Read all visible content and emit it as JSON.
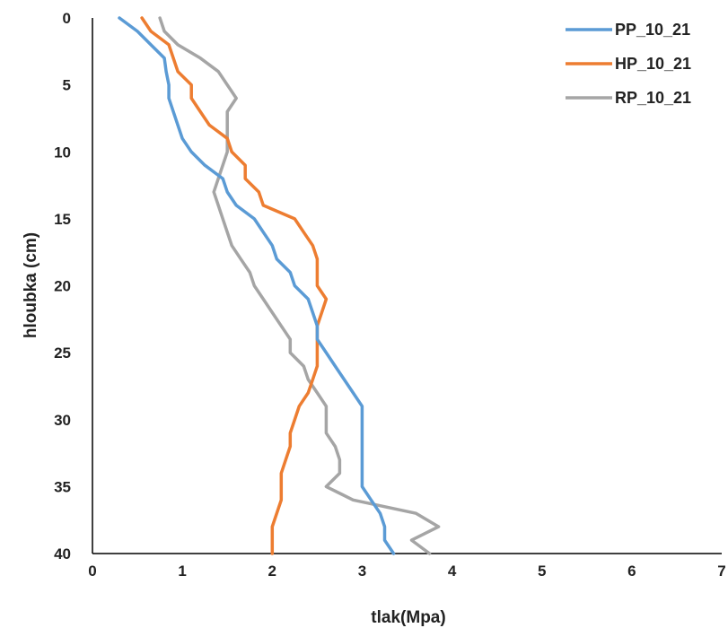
{
  "chart_data": {
    "type": "line",
    "title": "",
    "xlabel": "tlak(Mpa)",
    "ylabel": "hloubka (cm)",
    "xlim": [
      0,
      7
    ],
    "ylim": [
      0,
      40
    ],
    "y_inverted": true,
    "x_ticks": [
      "0",
      "1",
      "2",
      "3",
      "4",
      "5",
      "6",
      "7"
    ],
    "y_ticks": [
      "0",
      "5",
      "10",
      "15",
      "20",
      "25",
      "30",
      "35",
      "40"
    ],
    "grid": false,
    "legend_position": "top-right",
    "colors": {
      "PP_10_21": "#5b9bd5",
      "HP_10_21": "#ed7d31",
      "RP_10_21": "#a5a5a5"
    },
    "series": [
      {
        "name": "PP_10_21",
        "color": "#5b9bd5",
        "points": [
          [
            0.3,
            0
          ],
          [
            0.5,
            1
          ],
          [
            0.65,
            2
          ],
          [
            0.8,
            3
          ],
          [
            0.82,
            4
          ],
          [
            0.85,
            5
          ],
          [
            0.85,
            6
          ],
          [
            0.9,
            7
          ],
          [
            0.95,
            8
          ],
          [
            1.0,
            9
          ],
          [
            1.1,
            10
          ],
          [
            1.25,
            11
          ],
          [
            1.45,
            12
          ],
          [
            1.5,
            13
          ],
          [
            1.6,
            14
          ],
          [
            1.8,
            15
          ],
          [
            1.9,
            16
          ],
          [
            2.0,
            17
          ],
          [
            2.05,
            18
          ],
          [
            2.2,
            19
          ],
          [
            2.25,
            20
          ],
          [
            2.4,
            21
          ],
          [
            2.45,
            22
          ],
          [
            2.5,
            23
          ],
          [
            2.5,
            24
          ],
          [
            2.6,
            25
          ],
          [
            2.7,
            26
          ],
          [
            2.8,
            27
          ],
          [
            2.9,
            28
          ],
          [
            3.0,
            29
          ],
          [
            3.0,
            30
          ],
          [
            3.0,
            31
          ],
          [
            3.0,
            32
          ],
          [
            3.0,
            33
          ],
          [
            3.0,
            34
          ],
          [
            3.0,
            35
          ],
          [
            3.1,
            36
          ],
          [
            3.2,
            37
          ],
          [
            3.25,
            38
          ],
          [
            3.25,
            39
          ],
          [
            3.35,
            40
          ]
        ]
      },
      {
        "name": "HP_10_21",
        "color": "#ed7d31",
        "points": [
          [
            0.55,
            0
          ],
          [
            0.65,
            1
          ],
          [
            0.85,
            2
          ],
          [
            0.9,
            3
          ],
          [
            0.95,
            4
          ],
          [
            1.1,
            5
          ],
          [
            1.1,
            6
          ],
          [
            1.2,
            7
          ],
          [
            1.3,
            8
          ],
          [
            1.5,
            9
          ],
          [
            1.55,
            10
          ],
          [
            1.7,
            11
          ],
          [
            1.7,
            12
          ],
          [
            1.85,
            13
          ],
          [
            1.9,
            14
          ],
          [
            2.25,
            15
          ],
          [
            2.35,
            16
          ],
          [
            2.45,
            17
          ],
          [
            2.5,
            18
          ],
          [
            2.5,
            19
          ],
          [
            2.5,
            20
          ],
          [
            2.6,
            21
          ],
          [
            2.55,
            22
          ],
          [
            2.5,
            23
          ],
          [
            2.5,
            24
          ],
          [
            2.5,
            25
          ],
          [
            2.5,
            26
          ],
          [
            2.45,
            27
          ],
          [
            2.4,
            28
          ],
          [
            2.3,
            29
          ],
          [
            2.25,
            30
          ],
          [
            2.2,
            31
          ],
          [
            2.2,
            32
          ],
          [
            2.15,
            33
          ],
          [
            2.1,
            34
          ],
          [
            2.1,
            35
          ],
          [
            2.1,
            36
          ],
          [
            2.05,
            37
          ],
          [
            2.0,
            38
          ],
          [
            2.0,
            39
          ],
          [
            2.0,
            40
          ]
        ]
      },
      {
        "name": "RP_10_21",
        "color": "#a5a5a5",
        "points": [
          [
            0.75,
            0
          ],
          [
            0.8,
            1
          ],
          [
            0.95,
            2
          ],
          [
            1.2,
            3
          ],
          [
            1.4,
            4
          ],
          [
            1.5,
            5
          ],
          [
            1.6,
            6
          ],
          [
            1.5,
            7
          ],
          [
            1.5,
            8
          ],
          [
            1.5,
            9
          ],
          [
            1.5,
            10
          ],
          [
            1.45,
            11
          ],
          [
            1.4,
            12
          ],
          [
            1.35,
            13
          ],
          [
            1.4,
            14
          ],
          [
            1.45,
            15
          ],
          [
            1.5,
            16
          ],
          [
            1.55,
            17
          ],
          [
            1.65,
            18
          ],
          [
            1.75,
            19
          ],
          [
            1.8,
            20
          ],
          [
            1.9,
            21
          ],
          [
            2.0,
            22
          ],
          [
            2.1,
            23
          ],
          [
            2.2,
            24
          ],
          [
            2.2,
            25
          ],
          [
            2.35,
            26
          ],
          [
            2.4,
            27
          ],
          [
            2.5,
            28
          ],
          [
            2.6,
            29
          ],
          [
            2.6,
            30
          ],
          [
            2.6,
            31
          ],
          [
            2.7,
            32
          ],
          [
            2.75,
            33
          ],
          [
            2.75,
            34
          ],
          [
            2.6,
            35
          ],
          [
            2.9,
            36
          ],
          [
            3.6,
            37
          ],
          [
            3.85,
            38
          ],
          [
            3.55,
            39
          ],
          [
            3.75,
            40
          ]
        ]
      }
    ]
  }
}
